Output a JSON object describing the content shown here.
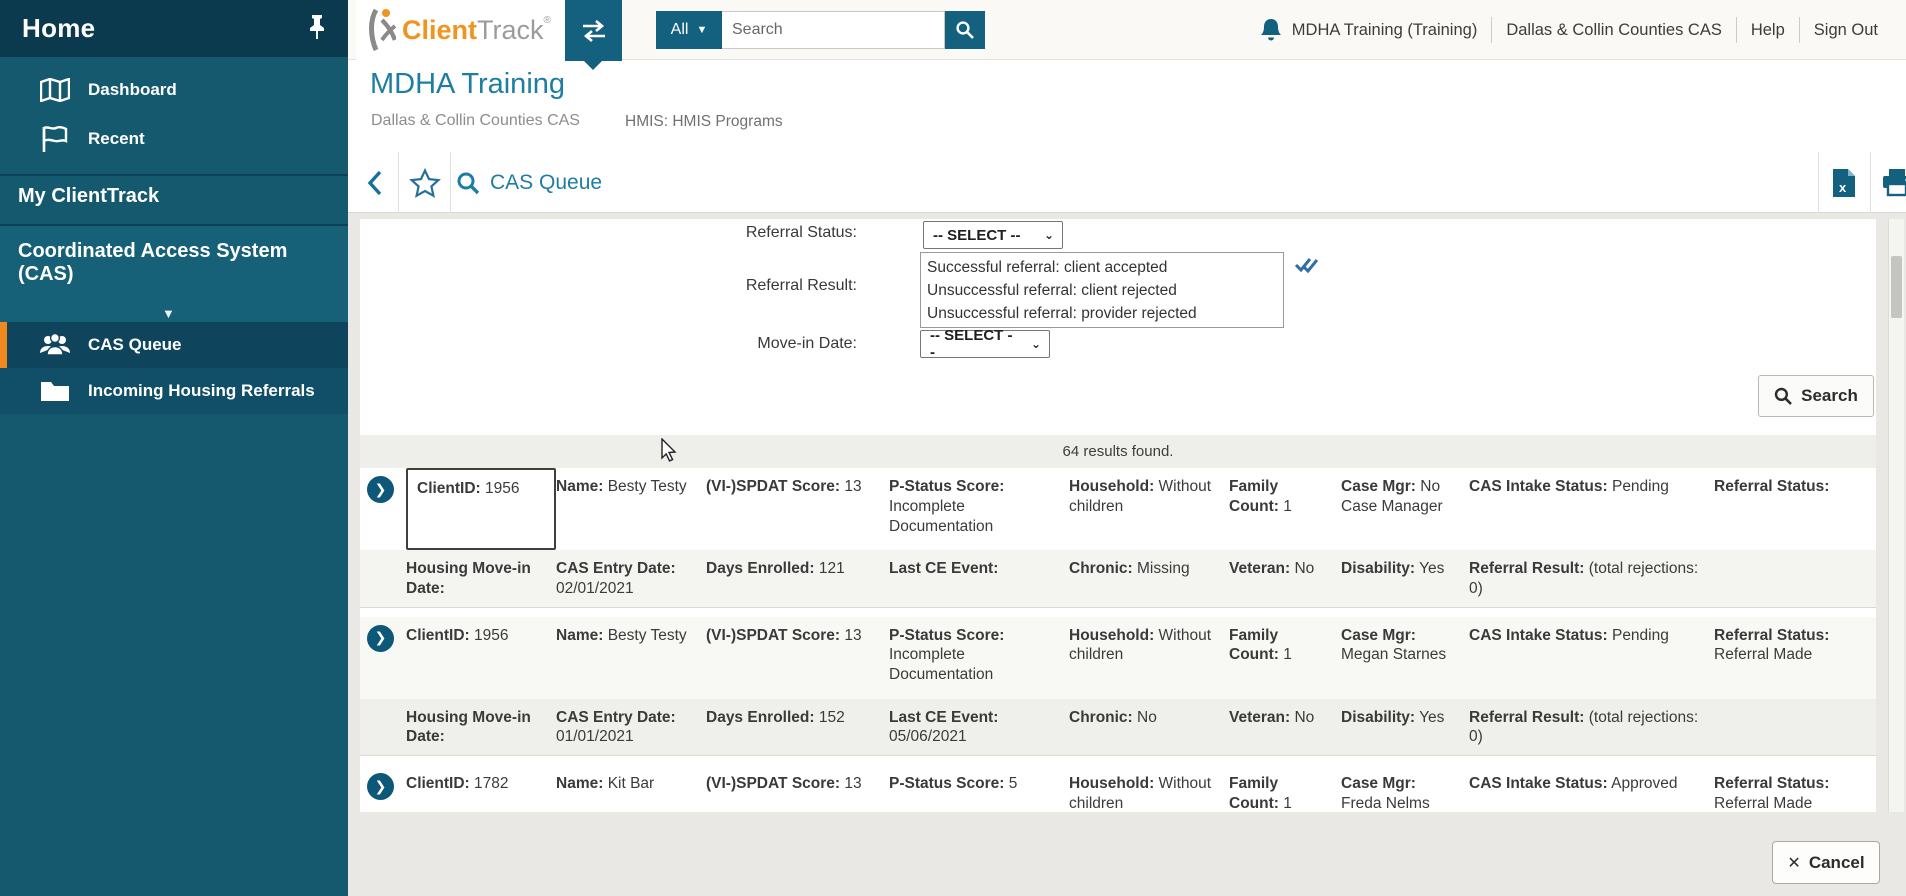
{
  "colors": {
    "accent_teal": "#14607f",
    "title_teal": "#1e7da4",
    "brand_orange": "#f0941f",
    "active_orange": "#f08a1e"
  },
  "sidebar": {
    "home": "Home",
    "nav": [
      {
        "label": "Dashboard"
      },
      {
        "label": "Recent"
      }
    ],
    "my_clienttrack": "My ClientTrack",
    "cas_section_line1": "Coordinated Access System",
    "cas_section_line2": "(CAS)",
    "cas_items": [
      {
        "label": "CAS Queue",
        "active": true
      },
      {
        "label": "Incoming Housing Referrals",
        "active": false
      }
    ]
  },
  "topbar": {
    "brand_client": "Client",
    "brand_track": "Track",
    "brand_reg": "®",
    "scope": "All",
    "search_placeholder": "Search",
    "user": "MDHA Training (Training)",
    "org": "Dallas & Collin Counties CAS",
    "help": "Help",
    "signout": "Sign Out"
  },
  "header": {
    "title": "MDHA Training",
    "subtitle": "Dallas & Collin Counties CAS",
    "program": "HMIS: HMIS Programs"
  },
  "toolbar": {
    "page_title": "CAS Queue"
  },
  "filters": {
    "referral_status_label": "Referral Status:",
    "referral_status_value": "-- SELECT --",
    "referral_result_label": "Referral Result:",
    "referral_result_options": [
      "Successful referral: client accepted",
      "Unsuccessful referral: client rejected",
      "Unsuccessful referral: provider rejected"
    ],
    "movein_label": "Move-in Date:",
    "movein_value": "-- SELECT --",
    "search_label": "Search"
  },
  "results": {
    "count_text": "64 results found.",
    "rows": [
      {
        "main": [
          {
            "l": "ClientID:",
            "v": "1956",
            "focus": true
          },
          {
            "l": "Name:",
            "v": "Besty Testy"
          },
          {
            "l": "(VI-)SPDAT Score:",
            "v": "13"
          },
          {
            "l": "P-Status Score:",
            "v": "Incomplete Documentation"
          },
          {
            "l": "Household:",
            "v": "Without children"
          },
          {
            "l": "Family Count:",
            "v": "1"
          },
          {
            "l": "Case Mgr:",
            "v": "No Case Manager"
          },
          {
            "l": "CAS Intake Status:",
            "v": "Pending"
          },
          {
            "l": "Referral Status:",
            "v": ""
          }
        ],
        "sub": [
          {
            "l": "Housing Move-in Date:",
            "v": ""
          },
          {
            "l": "CAS Entry Date:",
            "v": "02/01/2021"
          },
          {
            "l": "Days Enrolled:",
            "v": "121"
          },
          {
            "l": "Last CE Event:",
            "v": ""
          },
          {
            "l": "Chronic:",
            "v": "Missing"
          },
          {
            "l": "Veteran:",
            "v": "No"
          },
          {
            "l": "Disability:",
            "v": "Yes"
          },
          {
            "l": "Referral Result:",
            "v": "(total rejections: 0)"
          }
        ]
      },
      {
        "main": [
          {
            "l": "ClientID:",
            "v": "1956"
          },
          {
            "l": "Name:",
            "v": "Besty Testy"
          },
          {
            "l": "(VI-)SPDAT Score:",
            "v": "13"
          },
          {
            "l": "P-Status Score:",
            "v": "Incomplete Documentation"
          },
          {
            "l": "Household:",
            "v": "Without children"
          },
          {
            "l": "Family Count:",
            "v": "1"
          },
          {
            "l": "Case Mgr:",
            "v": "Megan Starnes"
          },
          {
            "l": "CAS Intake Status:",
            "v": "Pending"
          },
          {
            "l": "Referral Status:",
            "v": "Referral Made"
          }
        ],
        "sub": [
          {
            "l": "Housing Move-in Date:",
            "v": ""
          },
          {
            "l": "CAS Entry Date:",
            "v": "01/01/2021"
          },
          {
            "l": "Days Enrolled:",
            "v": "152"
          },
          {
            "l": "Last CE Event:",
            "v": "05/06/2021"
          },
          {
            "l": "Chronic:",
            "v": "No"
          },
          {
            "l": "Veteran:",
            "v": "No"
          },
          {
            "l": "Disability:",
            "v": "Yes"
          },
          {
            "l": "Referral Result:",
            "v": "(total rejections: 0)"
          }
        ]
      },
      {
        "main": [
          {
            "l": "ClientID:",
            "v": "1782"
          },
          {
            "l": "Name:",
            "v": "Kit Bar"
          },
          {
            "l": "(VI-)SPDAT Score:",
            "v": "13"
          },
          {
            "l": "P-Status Score:",
            "v": "5"
          },
          {
            "l": "Household:",
            "v": "Without children"
          },
          {
            "l": "Family Count:",
            "v": "1"
          },
          {
            "l": "Case Mgr:",
            "v": "Freda Nelms"
          },
          {
            "l": "CAS Intake Status:",
            "v": "Approved"
          },
          {
            "l": "Referral Status:",
            "v": "Referral Made"
          }
        ],
        "sub": null
      }
    ]
  },
  "footer": {
    "cancel_label": "Cancel"
  }
}
